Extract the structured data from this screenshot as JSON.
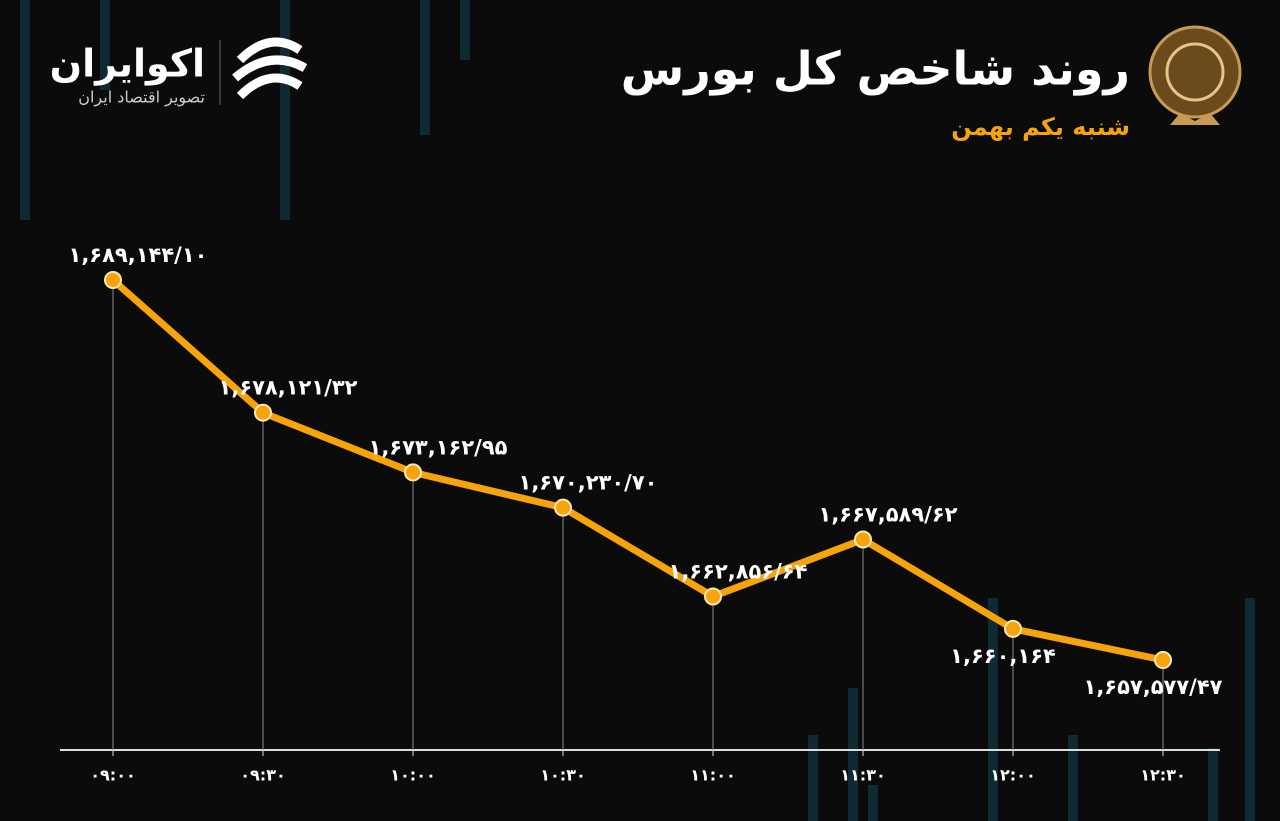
{
  "brand": {
    "name": "اکوایران",
    "tagline": "تصویر اقتصاد ایران"
  },
  "chart_data": {
    "type": "line",
    "title": "روند شاخص کل بورس",
    "subtitle": "شنبه یکم بهمن",
    "categories": [
      "۰۹:۰۰",
      "۰۹:۳۰",
      "۱۰:۰۰",
      "۱۰:۳۰",
      "۱۱:۰۰",
      "۱۱:۳۰",
      "۱۲:۰۰",
      "۱۲:۳۰"
    ],
    "series": [
      {
        "name": "شاخص کل",
        "color": "#f7a30a",
        "values": [
          1689144.1,
          1678121.32,
          1673162.95,
          1670230.7,
          1662856.64,
          1667589.62,
          1660164,
          1657577.47
        ],
        "value_labels": [
          "۱,۶۸۹,۱۴۴/۱۰",
          "۱,۶۷۸,۱۲۱/۳۲",
          "۱,۶۷۳,۱۶۲/۹۵",
          "۱,۶۷۰,۲۳۰/۷۰",
          "۱,۶۶۲,۸۵۶/۶۴",
          "۱,۶۶۷,۵۸۹/۶۲",
          "۱,۶۶۰,۱۶۴",
          "۱,۶۵۷,۵۷۷/۴۷"
        ]
      }
    ]
  }
}
